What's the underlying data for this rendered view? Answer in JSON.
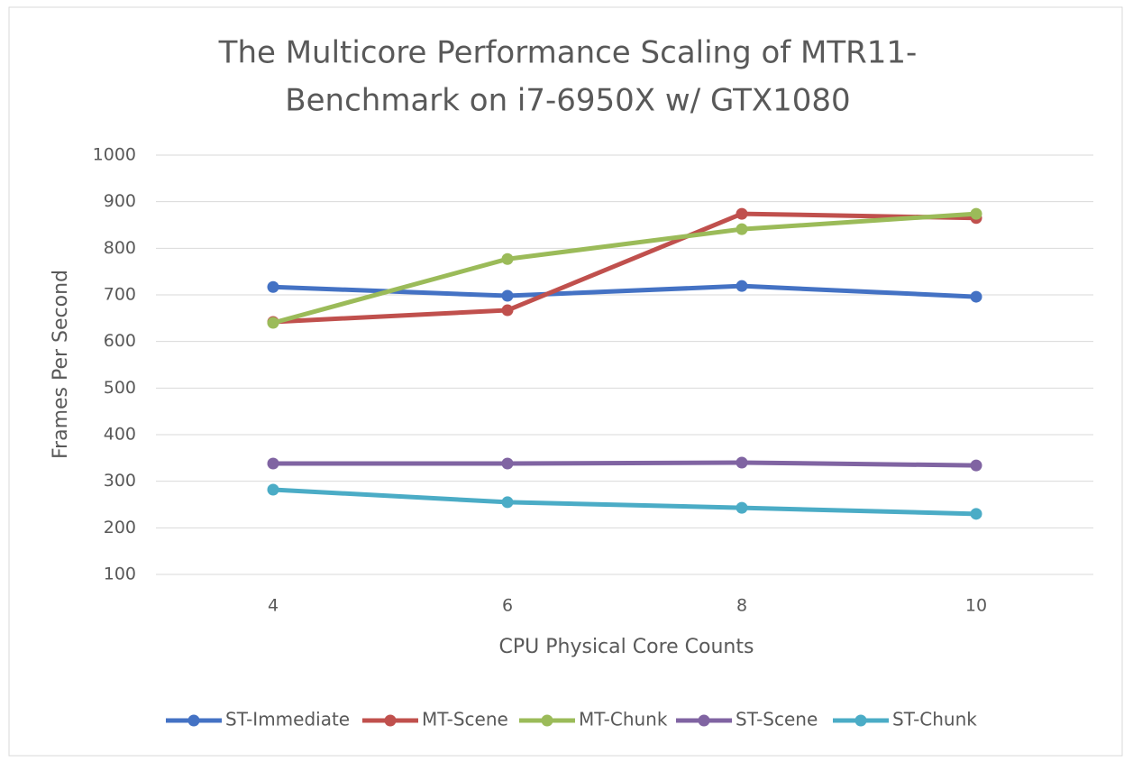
{
  "chart_data": {
    "type": "line",
    "title": [
      "The Multicore Performance Scaling of MTR11-",
      "Benchmark on i7-6950X w/ GTX1080"
    ],
    "x_label": "CPU Physical Core Counts",
    "y_label": "Frames Per Second",
    "categories": [
      "4",
      "6",
      "8",
      "10"
    ],
    "series": [
      {
        "name": "ST-Immediate",
        "color": "#4472c4",
        "values": [
          717,
          698,
          719,
          696
        ]
      },
      {
        "name": "MT-Scene",
        "color": "#c0504d",
        "values": [
          642,
          667,
          874,
          865
        ]
      },
      {
        "name": "MT-Chunk",
        "color": "#9bbb59",
        "values": [
          640,
          777,
          841,
          874
        ]
      },
      {
        "name": "ST-Scene",
        "color": "#8064a2",
        "values": [
          338,
          338,
          340,
          334
        ]
      },
      {
        "name": "ST-Chunk",
        "color": "#4bacc6",
        "values": [
          282,
          255,
          243,
          230
        ]
      }
    ],
    "ylim": [
      100,
      1000
    ],
    "yticks": [
      100,
      200,
      300,
      400,
      500,
      600,
      700,
      800,
      900,
      1000
    ],
    "grid": true,
    "legend": "bottom"
  }
}
